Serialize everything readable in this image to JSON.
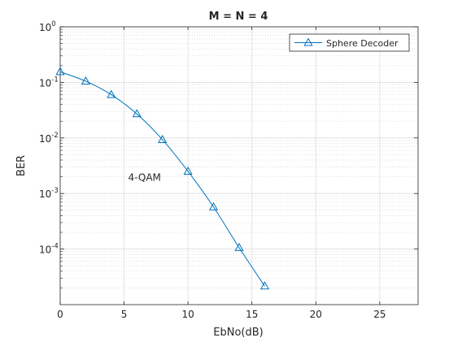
{
  "chart_data": {
    "type": "line",
    "title": "M = N = 4",
    "xlabel": "EbNo(dB)",
    "ylabel": "BER",
    "xlim": [
      0,
      28
    ],
    "ylim": [
      1e-05,
      1
    ],
    "yscale": "log",
    "xticks": [
      "0",
      "5",
      "10",
      "15",
      "20",
      "25"
    ],
    "yticks": [
      {
        "base": "10",
        "exp": "0"
      },
      {
        "base": "10",
        "exp": "-1"
      },
      {
        "base": "10",
        "exp": "-2"
      },
      {
        "base": "10",
        "exp": "-3"
      },
      {
        "base": "10",
        "exp": "-4"
      }
    ],
    "grid": true,
    "minor_grid": true,
    "legend_position": "top-right",
    "series": [
      {
        "name": "Sphere Decoder",
        "color": "#0072BD",
        "marker": "triangle",
        "x": [
          0,
          2,
          4,
          6,
          8,
          10,
          12,
          14,
          16
        ],
        "y": [
          0.155,
          0.105,
          0.06,
          0.027,
          0.0093,
          0.0025,
          0.00057,
          0.000106,
          2.15e-05
        ]
      }
    ],
    "annotations": [
      {
        "text": "4-QAM",
        "x": 6.6,
        "y": 0.0017
      }
    ]
  }
}
